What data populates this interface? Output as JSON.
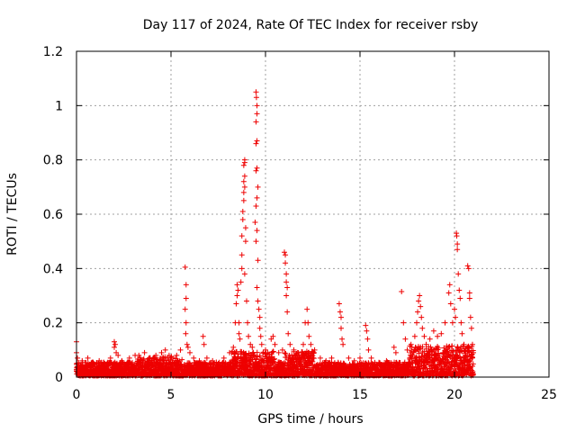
{
  "chart_data": {
    "type": "scatter",
    "title": "Day 117 of 2024, Rate Of TEC Index for receiver rsby",
    "xlabel": "GPS time / hours",
    "ylabel": "ROTI / TECUs",
    "xlim": [
      0,
      25
    ],
    "ylim": [
      0,
      1.2
    ],
    "x_ticks": [
      0,
      5,
      10,
      15,
      20,
      25
    ],
    "x_tick_labels": [
      "0",
      "5",
      "10",
      "15",
      "20",
      "25"
    ],
    "y_ticks": [
      0,
      0.2,
      0.4,
      0.6,
      0.8,
      1.0,
      1.2
    ],
    "y_tick_labels": [
      "0",
      "0.2",
      "0.4",
      "0.6",
      "0.8",
      "1",
      "1.2"
    ],
    "grid": true,
    "marker": "plus",
    "color": "#ee0000",
    "x_data_end": 21.0,
    "series": [
      {
        "name": "ROTI",
        "baseline_points": "dense band of points between ~0.0 and ~0.08 TECU/s from 0 to 21 h",
        "points": [
          [
            0.0,
            0.13
          ],
          [
            0.0,
            0.09
          ],
          [
            0.05,
            0.07
          ],
          [
            0.1,
            0.05
          ],
          [
            0.3,
            0.06
          ],
          [
            0.6,
            0.07
          ],
          [
            0.9,
            0.05
          ],
          [
            1.2,
            0.06
          ],
          [
            1.5,
            0.05
          ],
          [
            1.8,
            0.07
          ],
          [
            2.0,
            0.13
          ],
          [
            2.0,
            0.11
          ],
          [
            2.05,
            0.12
          ],
          [
            2.1,
            0.09
          ],
          [
            2.2,
            0.08
          ],
          [
            2.4,
            0.06
          ],
          [
            2.8,
            0.07
          ],
          [
            3.1,
            0.08
          ],
          [
            3.3,
            0.08
          ],
          [
            3.6,
            0.09
          ],
          [
            3.9,
            0.07
          ],
          [
            4.2,
            0.08
          ],
          [
            4.5,
            0.09
          ],
          [
            4.7,
            0.1
          ],
          [
            4.9,
            0.08
          ],
          [
            5.1,
            0.07
          ],
          [
            5.3,
            0.08
          ],
          [
            5.5,
            0.1
          ],
          [
            5.75,
            0.405
          ],
          [
            5.8,
            0.34
          ],
          [
            5.8,
            0.29
          ],
          [
            5.75,
            0.25
          ],
          [
            5.8,
            0.2
          ],
          [
            5.78,
            0.16
          ],
          [
            5.85,
            0.12
          ],
          [
            5.9,
            0.11
          ],
          [
            6.0,
            0.09
          ],
          [
            6.2,
            0.07
          ],
          [
            6.5,
            0.06
          ],
          [
            6.7,
            0.15
          ],
          [
            6.75,
            0.12
          ],
          [
            6.9,
            0.07
          ],
          [
            7.2,
            0.06
          ],
          [
            7.5,
            0.05
          ],
          [
            7.8,
            0.07
          ],
          [
            8.1,
            0.09
          ],
          [
            8.3,
            0.11
          ],
          [
            8.4,
            0.2
          ],
          [
            8.45,
            0.27
          ],
          [
            8.5,
            0.3
          ],
          [
            8.5,
            0.34
          ],
          [
            8.55,
            0.32
          ],
          [
            8.6,
            0.2
          ],
          [
            8.6,
            0.16
          ],
          [
            8.65,
            0.14
          ],
          [
            8.7,
            0.35
          ],
          [
            8.75,
            0.4
          ],
          [
            8.75,
            0.45
          ],
          [
            8.75,
            0.52
          ],
          [
            8.8,
            0.58
          ],
          [
            8.8,
            0.61
          ],
          [
            8.85,
            0.65
          ],
          [
            8.85,
            0.68
          ],
          [
            8.85,
            0.72
          ],
          [
            8.9,
            0.74
          ],
          [
            8.85,
            0.78
          ],
          [
            8.9,
            0.8
          ],
          [
            8.9,
            0.79
          ],
          [
            8.9,
            0.7
          ],
          [
            8.95,
            0.55
          ],
          [
            8.95,
            0.5
          ],
          [
            8.9,
            0.38
          ],
          [
            9.0,
            0.28
          ],
          [
            9.05,
            0.2
          ],
          [
            9.1,
            0.15
          ],
          [
            9.2,
            0.12
          ],
          [
            9.3,
            0.11
          ],
          [
            9.5,
            1.05
          ],
          [
            9.52,
            1.03
          ],
          [
            9.55,
            1.0
          ],
          [
            9.55,
            0.97
          ],
          [
            9.5,
            0.94
          ],
          [
            9.55,
            0.87
          ],
          [
            9.5,
            0.86
          ],
          [
            9.55,
            0.77
          ],
          [
            9.5,
            0.76
          ],
          [
            9.6,
            0.7
          ],
          [
            9.55,
            0.66
          ],
          [
            9.5,
            0.63
          ],
          [
            9.45,
            0.57
          ],
          [
            9.55,
            0.54
          ],
          [
            9.5,
            0.5
          ],
          [
            9.6,
            0.43
          ],
          [
            9.55,
            0.33
          ],
          [
            9.6,
            0.28
          ],
          [
            9.65,
            0.25
          ],
          [
            9.7,
            0.22
          ],
          [
            9.7,
            0.18
          ],
          [
            9.75,
            0.15
          ],
          [
            9.8,
            0.12
          ],
          [
            10.0,
            0.1
          ],
          [
            10.3,
            0.14
          ],
          [
            10.4,
            0.15
          ],
          [
            10.5,
            0.12
          ],
          [
            10.7,
            0.09
          ],
          [
            10.9,
            0.1
          ],
          [
            11.0,
            0.46
          ],
          [
            11.05,
            0.45
          ],
          [
            11.05,
            0.42
          ],
          [
            11.1,
            0.38
          ],
          [
            11.1,
            0.35
          ],
          [
            11.15,
            0.33
          ],
          [
            11.1,
            0.3
          ],
          [
            11.15,
            0.24
          ],
          [
            11.2,
            0.16
          ],
          [
            11.3,
            0.12
          ],
          [
            11.5,
            0.1
          ],
          [
            11.7,
            0.09
          ],
          [
            12.0,
            0.12
          ],
          [
            12.1,
            0.2
          ],
          [
            12.2,
            0.25
          ],
          [
            12.25,
            0.2
          ],
          [
            12.3,
            0.15
          ],
          [
            12.4,
            0.12
          ],
          [
            12.6,
            0.1
          ],
          [
            12.9,
            0.07
          ],
          [
            13.2,
            0.06
          ],
          [
            13.5,
            0.07
          ],
          [
            13.9,
            0.27
          ],
          [
            13.95,
            0.24
          ],
          [
            14.0,
            0.22
          ],
          [
            14.0,
            0.18
          ],
          [
            14.05,
            0.14
          ],
          [
            14.1,
            0.12
          ],
          [
            14.4,
            0.07
          ],
          [
            14.7,
            0.06
          ],
          [
            15.0,
            0.07
          ],
          [
            15.3,
            0.19
          ],
          [
            15.35,
            0.17
          ],
          [
            15.4,
            0.14
          ],
          [
            15.45,
            0.1
          ],
          [
            15.6,
            0.07
          ],
          [
            16.0,
            0.05
          ],
          [
            16.4,
            0.06
          ],
          [
            16.8,
            0.11
          ],
          [
            16.9,
            0.09
          ],
          [
            17.2,
            0.315
          ],
          [
            17.3,
            0.2
          ],
          [
            17.4,
            0.14
          ],
          [
            17.5,
            0.1
          ],
          [
            17.7,
            0.12
          ],
          [
            17.9,
            0.15
          ],
          [
            18.0,
            0.2
          ],
          [
            18.05,
            0.24
          ],
          [
            18.1,
            0.28
          ],
          [
            18.15,
            0.3
          ],
          [
            18.2,
            0.26
          ],
          [
            18.25,
            0.22
          ],
          [
            18.3,
            0.18
          ],
          [
            18.4,
            0.15
          ],
          [
            18.5,
            0.12
          ],
          [
            18.7,
            0.14
          ],
          [
            18.9,
            0.17
          ],
          [
            19.1,
            0.15
          ],
          [
            19.3,
            0.16
          ],
          [
            19.5,
            0.2
          ],
          [
            19.7,
            0.31
          ],
          [
            19.75,
            0.34
          ],
          [
            19.8,
            0.27
          ],
          [
            19.9,
            0.2
          ],
          [
            20.0,
            0.25
          ],
          [
            20.05,
            0.22
          ],
          [
            20.1,
            0.53
          ],
          [
            20.12,
            0.52
          ],
          [
            20.15,
            0.49
          ],
          [
            20.15,
            0.47
          ],
          [
            20.2,
            0.38
          ],
          [
            20.25,
            0.32
          ],
          [
            20.3,
            0.29
          ],
          [
            20.35,
            0.2
          ],
          [
            20.4,
            0.16
          ],
          [
            20.5,
            0.12
          ],
          [
            20.7,
            0.41
          ],
          [
            20.75,
            0.4
          ],
          [
            20.8,
            0.31
          ],
          [
            20.8,
            0.29
          ],
          [
            20.85,
            0.22
          ],
          [
            20.9,
            0.18
          ],
          [
            20.95,
            0.12
          ],
          [
            21.0,
            0.09
          ]
        ]
      }
    ]
  }
}
